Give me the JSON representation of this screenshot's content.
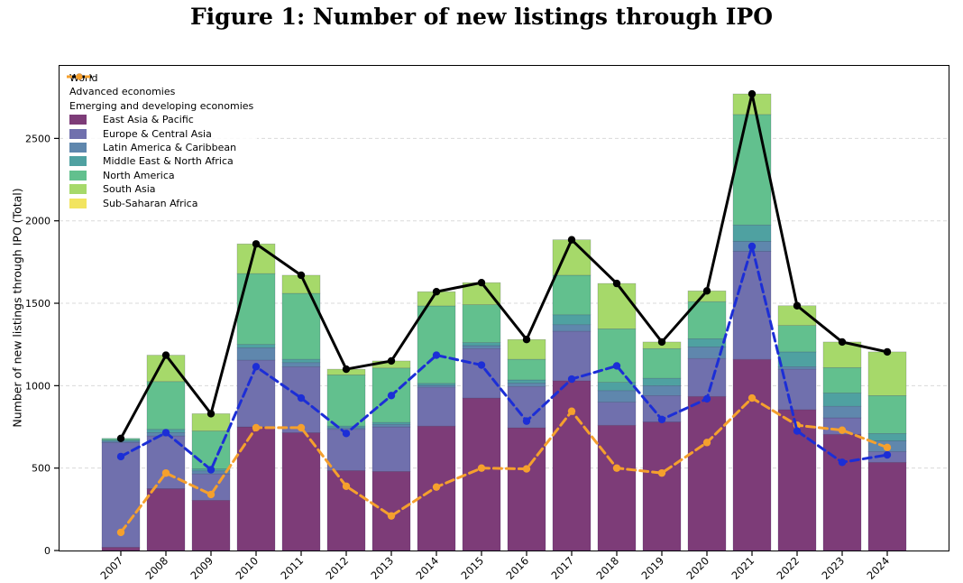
{
  "chart_data": {
    "type": "stacked_bar_with_lines",
    "title": "Figure 1: Number of new listings through IPO",
    "ylabel": "Number of new listings through IPO (Total)",
    "categories": [
      "2007",
      "2008",
      "2009",
      "2010",
      "2011",
      "2012",
      "2013",
      "2014",
      "2015",
      "2016",
      "2017",
      "2018",
      "2019",
      "2020",
      "2021",
      "2022",
      "2023",
      "2024"
    ],
    "ylim": [
      0,
      2940
    ],
    "yticks": [
      0,
      500,
      1000,
      1500,
      2000,
      2500
    ],
    "grid": {
      "axis": "y",
      "style": "dashed",
      "color": "#d9d9d9"
    },
    "legend_position": "upper-left",
    "line_series": [
      {
        "name": "World",
        "color": "#000000",
        "style": "solid",
        "marker": "circle",
        "values": [
          680,
          1185,
          830,
          1860,
          1670,
          1100,
          1150,
          1570,
          1625,
          1280,
          1885,
          1620,
          1265,
          1575,
          2770,
          1485,
          1265,
          1205
        ]
      },
      {
        "name": "Advanced economies",
        "color": "#1c2ed6",
        "style": "dashed",
        "marker": "circle",
        "values": [
          570,
          715,
          490,
          1115,
          925,
          710,
          940,
          1185,
          1125,
          785,
          1040,
          1120,
          795,
          920,
          1845,
          725,
          535,
          580
        ]
      },
      {
        "name": "Emerging and developing economies",
        "color": "#f5a02d",
        "style": "dashed",
        "marker": "circle",
        "values": [
          110,
          470,
          340,
          745,
          745,
          390,
          210,
          385,
          500,
          495,
          845,
          500,
          470,
          655,
          925,
          760,
          730,
          625
        ]
      }
    ],
    "bar_series": [
      {
        "name": "East Asia & Pacific",
        "color": "#7d3c78",
        "values": [
          20,
          375,
          305,
          750,
          715,
          485,
          480,
          755,
          925,
          745,
          1030,
          760,
          780,
          935,
          1160,
          855,
          705,
          535
        ]
      },
      {
        "name": "Europe & Central Asia",
        "color": "#7070ad",
        "values": [
          635,
          320,
          160,
          405,
          400,
          250,
          270,
          235,
          300,
          250,
          300,
          140,
          160,
          230,
          655,
          245,
          100,
          65
        ]
      },
      {
        "name": "Latin America & Caribbean",
        "color": "#5f87ad",
        "values": [
          8,
          20,
          18,
          75,
          25,
          10,
          15,
          12,
          18,
          20,
          40,
          70,
          60,
          70,
          60,
          15,
          70,
          65
        ]
      },
      {
        "name": "Middle East & North Africa",
        "color": "#4fa1a1",
        "values": [
          7,
          20,
          12,
          20,
          20,
          10,
          12,
          12,
          18,
          20,
          60,
          50,
          45,
          50,
          100,
          90,
          80,
          45
        ]
      },
      {
        "name": "North America",
        "color": "#62c08e",
        "values": [
          10,
          290,
          230,
          430,
          400,
          310,
          330,
          470,
          230,
          125,
          240,
          325,
          180,
          225,
          670,
          160,
          155,
          230
        ]
      },
      {
        "name": "South Asia",
        "color": "#a6d96a",
        "values": [
          0,
          160,
          105,
          180,
          110,
          35,
          43,
          86,
          134,
          120,
          215,
          275,
          40,
          65,
          125,
          120,
          155,
          265
        ]
      },
      {
        "name": "Sub-Saharan Africa",
        "color": "#f2e45f",
        "values": [
          0,
          0,
          0,
          0,
          0,
          0,
          0,
          0,
          0,
          0,
          0,
          0,
          0,
          0,
          0,
          0,
          0,
          0
        ]
      }
    ]
  }
}
